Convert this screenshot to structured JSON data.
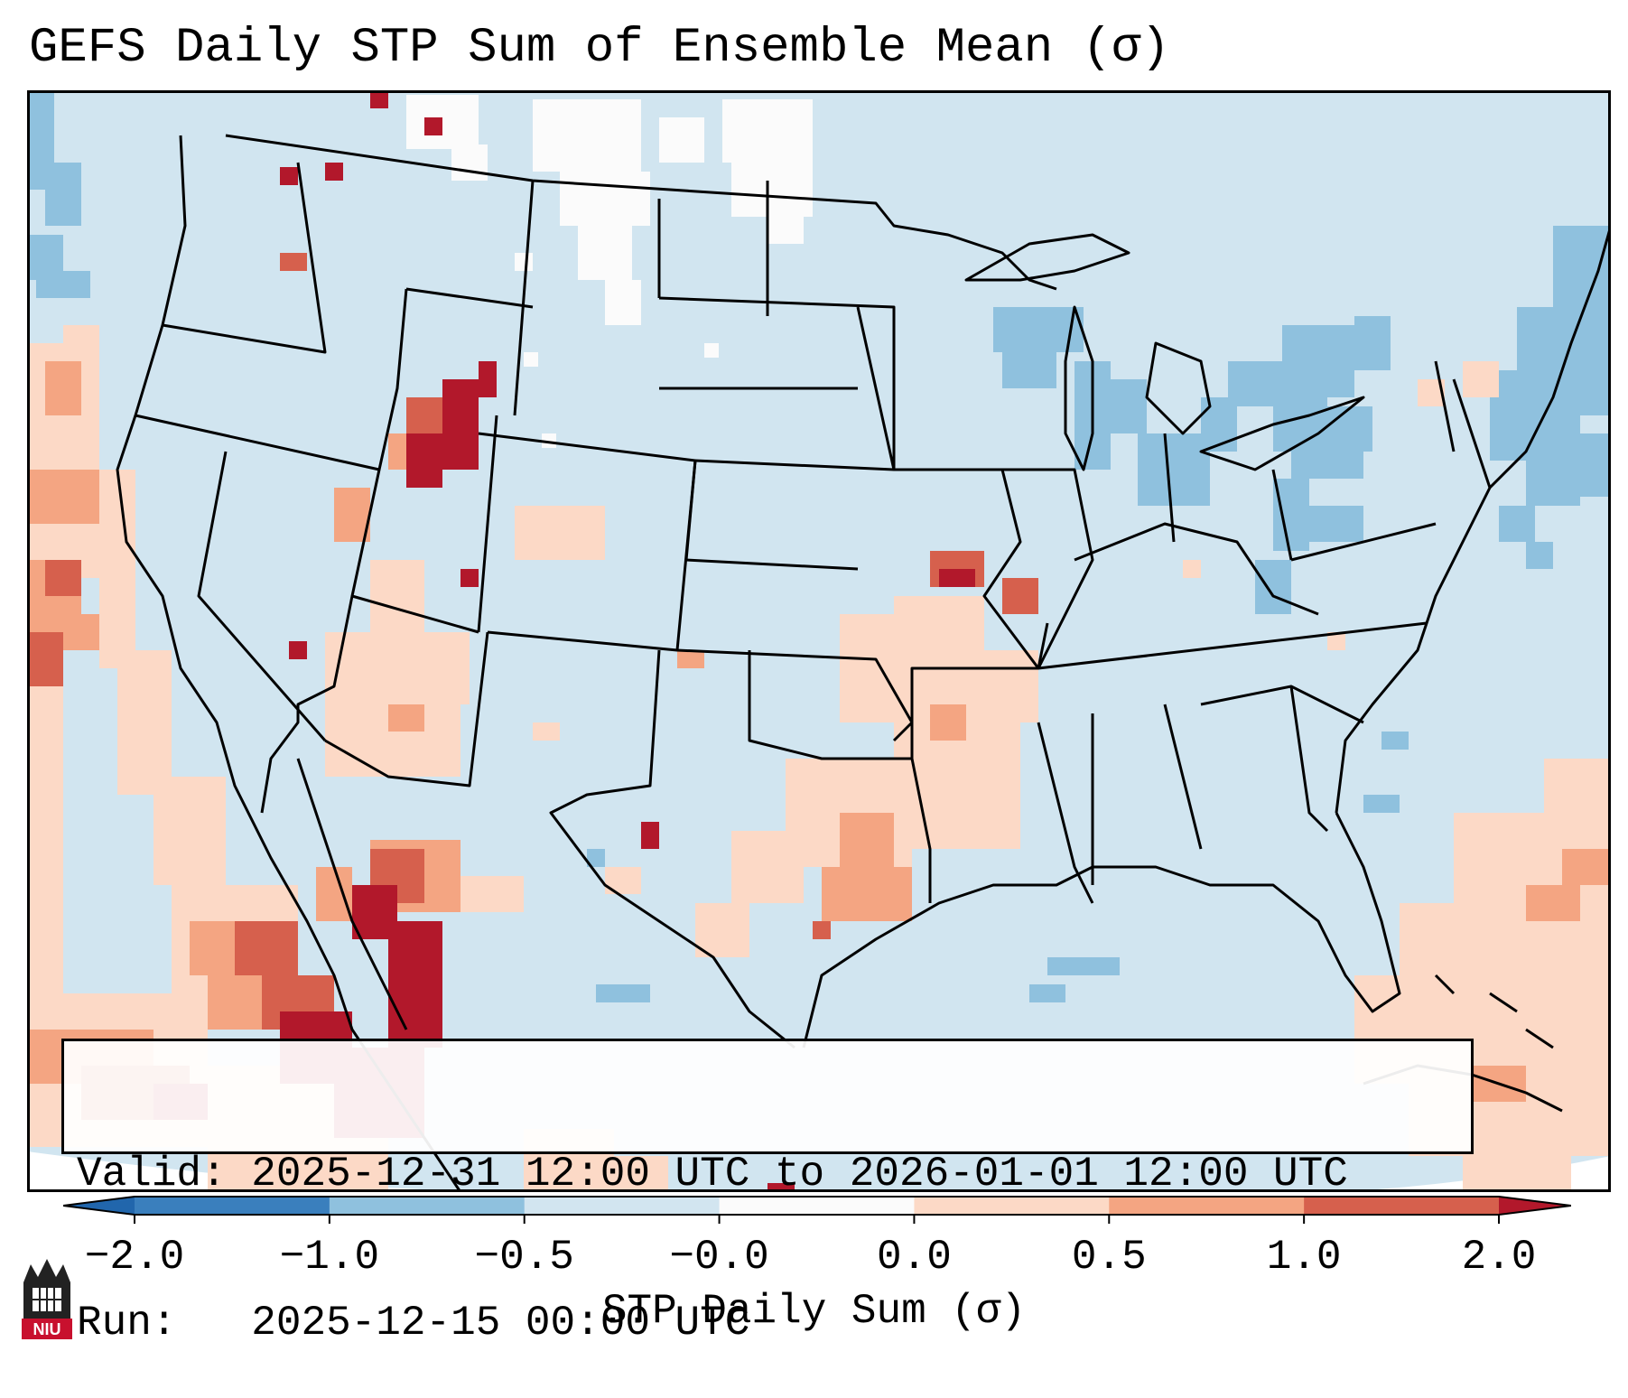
{
  "title": "GEFS Daily STP Sum of Ensemble Mean (σ)",
  "info": {
    "valid_label": "Valid:",
    "valid_value": "2025-12-31 12:00 UTC to 2026-01-01 12:00 UTC",
    "run_label": "Run:",
    "run_value": "2025-12-15 00:00 UTC"
  },
  "colorbar": {
    "label": "STP Daily Sum (σ)",
    "ticks": [
      "−2.0",
      "−1.0",
      "−0.5",
      "−0.0",
      "0.0",
      "0.5",
      "1.0",
      "2.0"
    ],
    "colors": [
      "#3a7fbd",
      "#8fc1de",
      "#d2e5f0",
      "#fbfbfb",
      "#fcd9c6",
      "#f4a582",
      "#d6604d",
      "#b2182b"
    ],
    "under_color": "#2166ac",
    "over_color": "#b2182b"
  },
  "map": {
    "background_color": "#d1e5f0",
    "land_border_color": "#000000"
  },
  "logo": {
    "text": "NIU"
  }
}
